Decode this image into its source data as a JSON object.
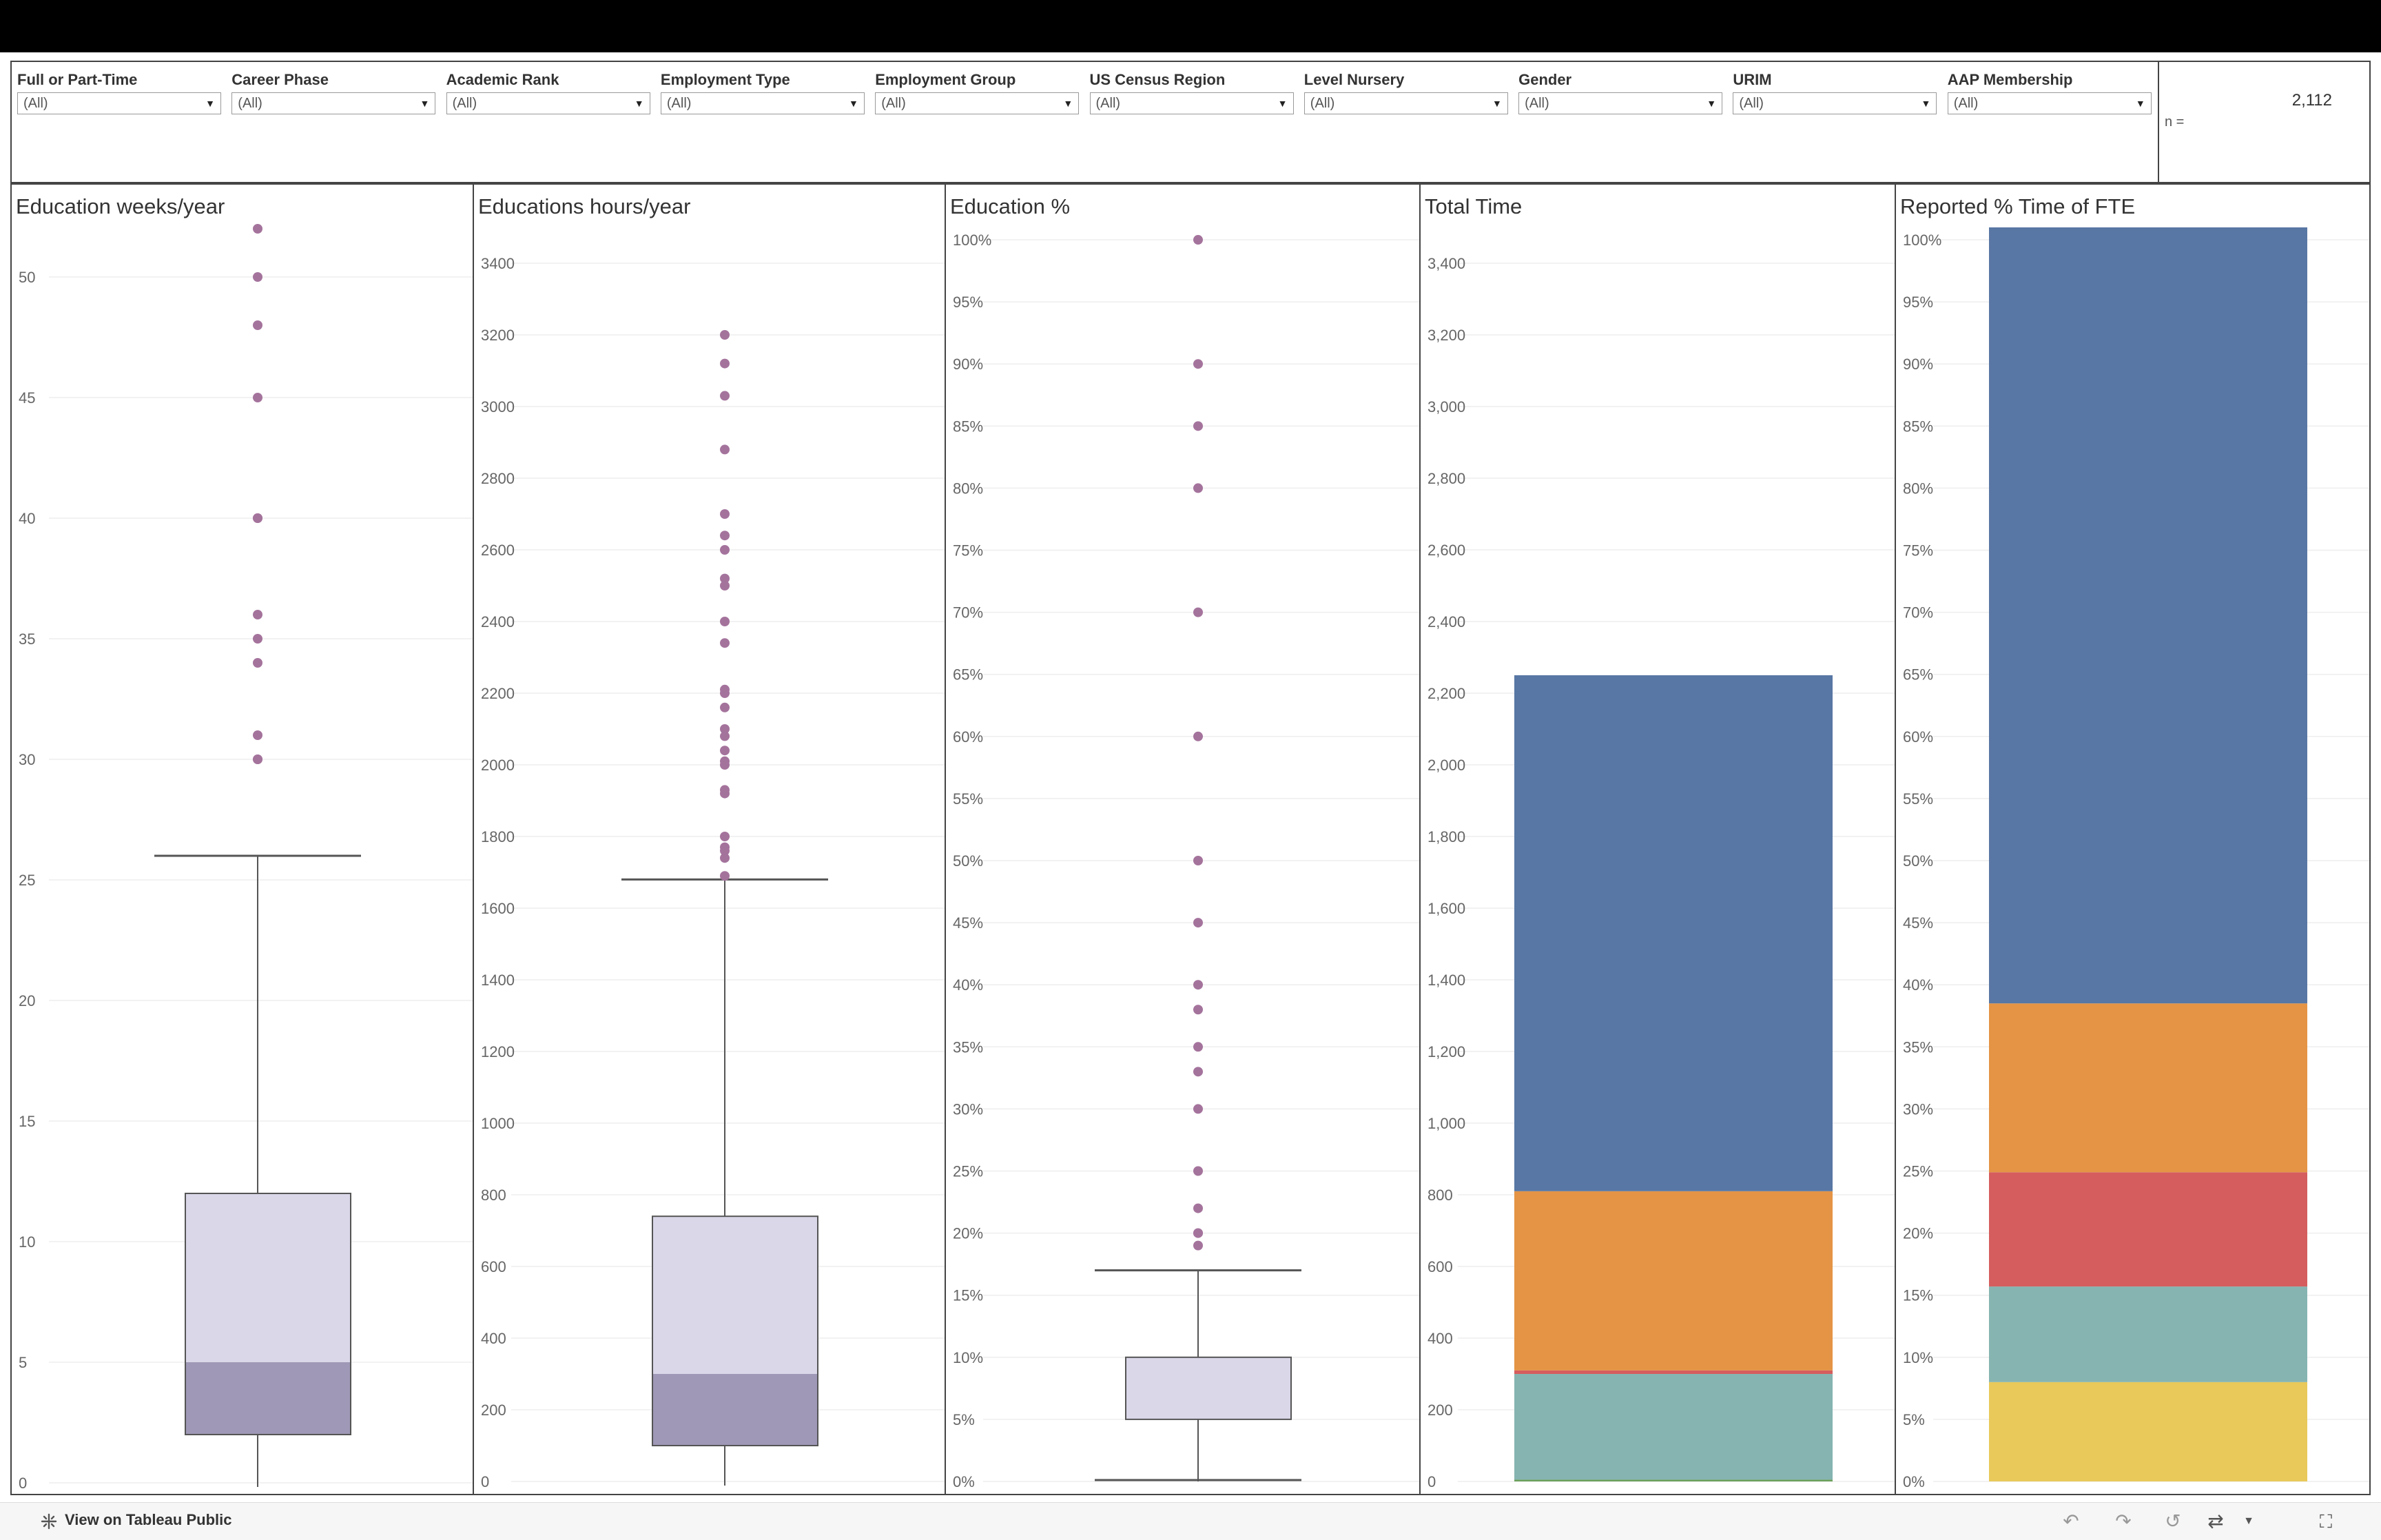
{
  "filters": [
    {
      "label": "Full or Part-Time",
      "value": "(All)"
    },
    {
      "label": "Career Phase",
      "value": "(All)"
    },
    {
      "label": "Academic Rank",
      "value": "(All)"
    },
    {
      "label": "Employment Type",
      "value": "(All)"
    },
    {
      "label": "Employment Group",
      "value": "(All)"
    },
    {
      "label": "US Census Region",
      "value": "(All)"
    },
    {
      "label": "Level Nursery",
      "value": "(All)"
    },
    {
      "label": "Gender",
      "value": "(All)"
    },
    {
      "label": "URIM",
      "value": "(All)"
    },
    {
      "label": "AAP Membership",
      "value": "(All)"
    }
  ],
  "count": {
    "label": "n =",
    "value": "2,112"
  },
  "footer": {
    "link_label": "View on Tableau Public"
  },
  "icons": {
    "tableau": "tableau-logo-icon",
    "undo": "undo-icon",
    "redo": "redo-icon",
    "revert": "revert-icon",
    "refresh": "refresh-icon",
    "menu": "chevron-down-icon",
    "fullscreen": "fullscreen-icon"
  },
  "colors": {
    "box_upper": "#dad7e9",
    "box_lower": "#9f98b6",
    "outlier": "#a4739c",
    "blue": "#5877a4",
    "orange": "#e49444",
    "red": "#d55d5e",
    "teal": "#86b4b1",
    "yellow": "#e8c95a",
    "green": "#6aa05a"
  },
  "chart_data": [
    {
      "type": "boxplot",
      "title": "Education weeks/year",
      "ylim": [
        0,
        52
      ],
      "ticks": [
        0,
        5,
        10,
        15,
        20,
        25,
        30,
        35,
        40,
        45,
        50
      ],
      "tick_labels": [
        "0",
        "5",
        "10",
        "15",
        "20",
        "25",
        "30",
        "35",
        "40",
        "45",
        "50"
      ],
      "box": {
        "whisker_low": 0,
        "q1": 2,
        "median": 5,
        "q3": 12,
        "whisker_high": 26
      },
      "outliers": [
        30,
        30,
        31,
        34,
        35,
        36,
        40,
        40,
        45,
        48,
        50,
        52
      ]
    },
    {
      "type": "boxplot",
      "title": "Educations hours/year",
      "ylim": [
        0,
        3500
      ],
      "ticks": [
        0,
        200,
        400,
        600,
        800,
        1000,
        1200,
        1400,
        1600,
        1800,
        2000,
        2200,
        2400,
        2600,
        2800,
        3000,
        3200,
        3400
      ],
      "tick_labels": [
        "0",
        "200",
        "400",
        "600",
        "800",
        "1000",
        "1200",
        "1400",
        "1600",
        "1800",
        "2000",
        "2200",
        "2400",
        "2600",
        "2800",
        "3000",
        "3200",
        "3400"
      ],
      "box": {
        "whisker_low": 0,
        "q1": 100,
        "median": 300,
        "q3": 740,
        "whisker_high": 1680
      },
      "outliers": [
        1690,
        1740,
        1760,
        1770,
        1800,
        1920,
        1930,
        2000,
        2010,
        2040,
        2080,
        2100,
        2160,
        2200,
        2210,
        2340,
        2400,
        2500,
        2520,
        2600,
        2640,
        2700,
        2880,
        3030,
        3120,
        3200
      ]
    },
    {
      "type": "boxplot",
      "title": "Education %",
      "ylim": [
        0,
        1.01
      ],
      "ticks": [
        0,
        0.05,
        0.1,
        0.15,
        0.2,
        0.25,
        0.3,
        0.35,
        0.4,
        0.45,
        0.5,
        0.55,
        0.6,
        0.65,
        0.7,
        0.75,
        0.8,
        0.85,
        0.9,
        0.95,
        1.0
      ],
      "tick_labels": [
        "0%",
        "5%",
        "10%",
        "15%",
        "20%",
        "25%",
        "30%",
        "35%",
        "40%",
        "45%",
        "50%",
        "55%",
        "60%",
        "65%",
        "70%",
        "75%",
        "80%",
        "85%",
        "90%",
        "95%",
        "100%"
      ],
      "box": {
        "whisker_low": 0.0,
        "q1": 0.05,
        "median": 0.05,
        "q3": 0.1,
        "whisker_high": 0.17
      },
      "outliers": [
        0.19,
        0.2,
        0.2,
        0.22,
        0.25,
        0.3,
        0.33,
        0.35,
        0.38,
        0.4,
        0.45,
        0.5,
        0.6,
        0.7,
        0.8,
        0.85,
        0.9,
        1.0
      ]
    },
    {
      "type": "stacked_bar",
      "title": "Total Time",
      "ylim": [
        0,
        3500
      ],
      "ticks": [
        0,
        200,
        400,
        600,
        800,
        1000,
        1200,
        1400,
        1600,
        1800,
        2000,
        2200,
        2400,
        2600,
        2800,
        3000,
        3200,
        3400
      ],
      "tick_labels": [
        "0",
        "200",
        "400",
        "600",
        "800",
        "1,000",
        "1,200",
        "1,400",
        "1,600",
        "1,800",
        "2,000",
        "2,200",
        "2,400",
        "2,600",
        "2,800",
        "3,000",
        "3,200",
        "3,400"
      ],
      "segments": [
        {
          "color_key": "green",
          "value": 5
        },
        {
          "color_key": "teal",
          "value": 295
        },
        {
          "color_key": "red",
          "value": 10
        },
        {
          "color_key": "orange",
          "value": 500
        },
        {
          "color_key": "blue",
          "value": 1440
        }
      ]
    },
    {
      "type": "stacked_bar",
      "title": "Reported % Time of FTE",
      "ylim": [
        0,
        1.01
      ],
      "ticks": [
        0,
        0.05,
        0.1,
        0.15,
        0.2,
        0.25,
        0.3,
        0.35,
        0.4,
        0.45,
        0.5,
        0.55,
        0.6,
        0.65,
        0.7,
        0.75,
        0.8,
        0.85,
        0.9,
        0.95,
        1.0
      ],
      "tick_labels": [
        "0%",
        "5%",
        "10%",
        "15%",
        "20%",
        "25%",
        "30%",
        "35%",
        "40%",
        "45%",
        "50%",
        "55%",
        "60%",
        "65%",
        "70%",
        "75%",
        "80%",
        "85%",
        "90%",
        "95%",
        "100%"
      ],
      "segments": [
        {
          "color_key": "yellow",
          "value": 0.08
        },
        {
          "color_key": "teal",
          "value": 0.077
        },
        {
          "color_key": "red",
          "value": 0.092
        },
        {
          "color_key": "orange",
          "value": 0.136
        },
        {
          "color_key": "blue",
          "value": 0.625
        }
      ]
    }
  ]
}
